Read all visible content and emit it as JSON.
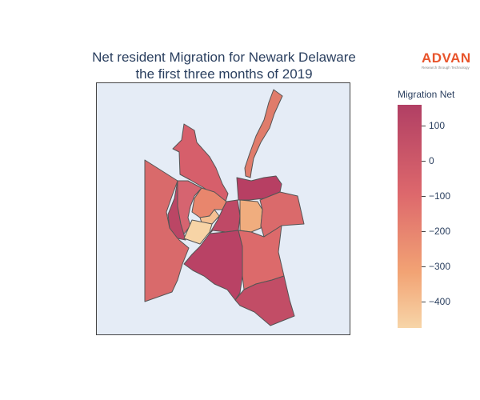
{
  "title_line1": "Net resident Migration for Newark Delaware",
  "title_line2": "the first three months of 2019",
  "logo": {
    "brand": "ADVAN",
    "tagline": "Research through Technology",
    "brand_color": "#e8542b"
  },
  "colorbar": {
    "title": "Migration Net",
    "ticks": [
      {
        "label": "100"
      },
      {
        "label": "0"
      },
      {
        "label": "−100"
      },
      {
        "label": "−200"
      },
      {
        "label": "−300"
      },
      {
        "label": "−400"
      }
    ],
    "colorscale": [
      "#b13f64",
      "#dd686c",
      "#f2a374",
      "#f7d5a8"
    ]
  },
  "map_background": "#e5ecf6",
  "regions": [
    {
      "id": "north-corridor",
      "color": "#e07c6b"
    },
    {
      "id": "northwest-strip",
      "color": "#d65f6b"
    },
    {
      "id": "west-large",
      "color": "#d96a6b"
    },
    {
      "id": "west-inner",
      "color": "#d66470"
    },
    {
      "id": "west-narrow",
      "color": "#bb4665"
    },
    {
      "id": "central-orange",
      "color": "#e8866d"
    },
    {
      "id": "small-yellow",
      "color": "#f5c193"
    },
    {
      "id": "lightest",
      "color": "#f7d4a6"
    },
    {
      "id": "center-dark",
      "color": "#bf4966"
    },
    {
      "id": "northeast-dark",
      "color": "#b73f63"
    },
    {
      "id": "east-light-orange",
      "color": "#f0ad7e"
    },
    {
      "id": "east",
      "color": "#da6a6b"
    },
    {
      "id": "southwest-large",
      "color": "#b94265"
    },
    {
      "id": "southeast-middle",
      "color": "#dc6a6b"
    },
    {
      "id": "south-dark",
      "color": "#c24d66"
    }
  ]
}
